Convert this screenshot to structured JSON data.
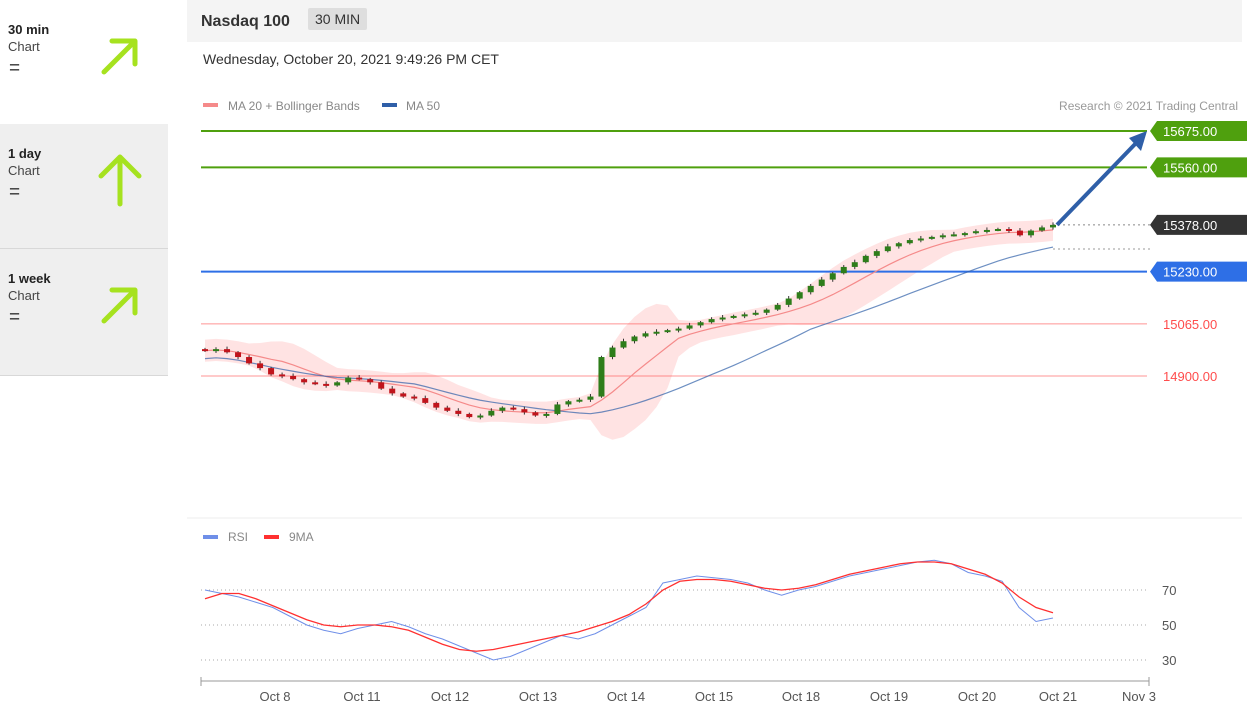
{
  "sidebar": {
    "items": [
      {
        "name": "30 min",
        "sub": "Chart",
        "eq": "=",
        "arrow": "arrow-up-right-icon",
        "selected": false
      },
      {
        "name": "1 day",
        "sub": "Chart",
        "eq": "=",
        "arrow": "arrow-up-icon",
        "selected": true
      },
      {
        "name": "1 week",
        "sub": "Chart",
        "eq": "=",
        "arrow": "arrow-up-right-icon",
        "selected": true
      }
    ],
    "arrow_color": "#a6e21f"
  },
  "header": {
    "title": "Nasdaq 100",
    "timeframe": "30 MIN",
    "datetime": "Wednesday, October 20, 2021 9:49:26 PM CET"
  },
  "legend": {
    "ma20": "MA 20 + Bollinger Bands",
    "ma50": "MA 50",
    "credit": "Research © 2021 Trading Central"
  },
  "chart_data": {
    "type": "candlestick",
    "x_ticks": [
      "Oct 8",
      "Oct 11",
      "Oct 12",
      "Oct 13",
      "Oct 14",
      "Oct 15",
      "Oct 18",
      "Oct 19",
      "Oct 20",
      "Oct 21",
      "Nov 3"
    ],
    "levels": [
      {
        "value": 15675.0,
        "label": "15675.00",
        "kind": "target",
        "color": "#4fa00e"
      },
      {
        "value": 15560.0,
        "label": "15560.00",
        "kind": "target",
        "color": "#4fa00e"
      },
      {
        "value": 15378.0,
        "label": "15378.00",
        "kind": "last",
        "color": "#333333"
      },
      {
        "value": 15230.0,
        "label": "15230.00",
        "kind": "pivot",
        "color": "#2e6fe6"
      },
      {
        "value": 15065.0,
        "label": "15065.00",
        "kind": "support",
        "color": "#ff4c4c"
      },
      {
        "value": 14900.0,
        "label": "14900.00",
        "kind": "support",
        "color": "#ff4c4c"
      }
    ],
    "close": [
      14980,
      14985,
      14975,
      14960,
      14940,
      14925,
      14905,
      14900,
      14890,
      14880,
      14875,
      14870,
      14880,
      14895,
      14890,
      14880,
      14860,
      14845,
      14835,
      14830,
      14815,
      14800,
      14790,
      14780,
      14770,
      14775,
      14790,
      14800,
      14795,
      14785,
      14775,
      14780,
      14810,
      14820,
      14825,
      14835,
      14960,
      14990,
      15010,
      15025,
      15035,
      15040,
      15045,
      15050,
      15060,
      15070,
      15080,
      15085,
      15090,
      15095,
      15100,
      15110,
      15125,
      15145,
      15165,
      15185,
      15205,
      15225,
      15245,
      15260,
      15280,
      15295,
      15310,
      15320,
      15330,
      15335,
      15340,
      15345,
      15348,
      15352,
      15358,
      15362,
      15365,
      15360,
      15345,
      15360,
      15370,
      15378
    ],
    "rsi": {
      "label": "RSI",
      "ma_label": "9MA",
      "ticks": [
        30,
        50,
        70
      ],
      "rsi_values": [
        70,
        68,
        66,
        63,
        60,
        55,
        50,
        47,
        45,
        48,
        50,
        52,
        49,
        45,
        42,
        38,
        34,
        30,
        32,
        36,
        40,
        44,
        42,
        45,
        50,
        55,
        60,
        74,
        76,
        78,
        77,
        76,
        74,
        70,
        67,
        70,
        72,
        75,
        78,
        80,
        82,
        84,
        86,
        87,
        85,
        80,
        78,
        75,
        60,
        52,
        54
      ],
      "ma_values": [
        65,
        68,
        68,
        65,
        61,
        57,
        53,
        50,
        49,
        50,
        50,
        49,
        47,
        43,
        39,
        36,
        35,
        36,
        38,
        40,
        42,
        44,
        46,
        49,
        52,
        56,
        62,
        70,
        75,
        76,
        76,
        75,
        73,
        71,
        70,
        71,
        73,
        76,
        79,
        81,
        83,
        85,
        86,
        86,
        85,
        82,
        79,
        74,
        66,
        60,
        57
      ]
    },
    "rsi_colors": {
      "rsi": "#6f8fe8",
      "ma": "#ff3030"
    },
    "ma20_color": "#f58a8a",
    "ma50_color": "#2f5fa8"
  }
}
